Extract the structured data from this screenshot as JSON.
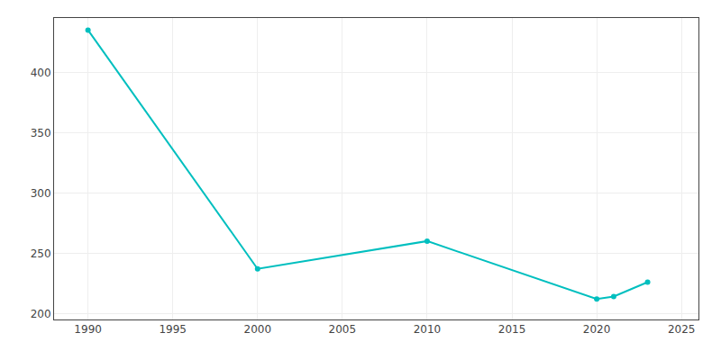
{
  "chart_data": {
    "type": "line",
    "x": [
      1990,
      2000,
      2010,
      2020,
      2021,
      2023
    ],
    "values": [
      435,
      237,
      260,
      212,
      214,
      226
    ],
    "color": "#00BFBF",
    "marker": "circle",
    "xlim": [
      1988,
      2026
    ],
    "ylim": [
      195,
      445
    ],
    "xticks": [
      1990,
      1995,
      2000,
      2005,
      2010,
      2015,
      2020,
      2025
    ],
    "yticks": [
      200,
      250,
      300,
      350,
      400
    ],
    "grid": true
  }
}
